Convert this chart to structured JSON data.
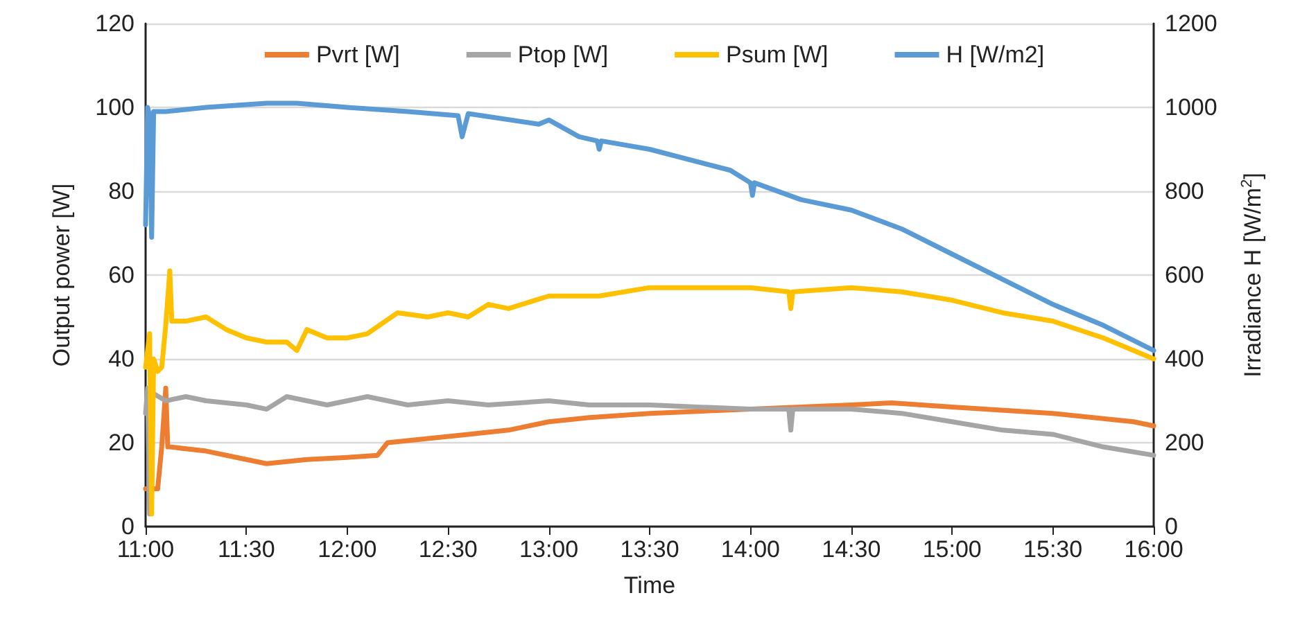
{
  "chart_data": {
    "type": "line",
    "xlabel": "Time",
    "ylabel": "Output power [W]",
    "y2label": "Irradiance H [W/m$^{2}$]",
    "xlim": [
      11,
      16
    ],
    "xticks": [
      {
        "value": 11,
        "label": "11:00"
      },
      {
        "value": 11.5,
        "label": "11:30"
      },
      {
        "value": 12,
        "label": "12:00"
      },
      {
        "value": 12.5,
        "label": "12:30"
      },
      {
        "value": 13,
        "label": "13:00"
      },
      {
        "value": 13.5,
        "label": "13:30"
      },
      {
        "value": 14,
        "label": "14:00"
      },
      {
        "value": 14.5,
        "label": "14:30"
      },
      {
        "value": 15,
        "label": "15:00"
      },
      {
        "value": 15.5,
        "label": "15:30"
      },
      {
        "value": 16,
        "label": "16:00"
      }
    ],
    "ylim": [
      0,
      120
    ],
    "yticks": [
      0,
      20,
      40,
      60,
      80,
      100,
      120
    ],
    "y2lim": [
      0,
      1200
    ],
    "y2ticks": [
      0,
      200,
      400,
      600,
      800,
      1000,
      1200
    ],
    "grid": "y",
    "legend": "top",
    "marker": "none",
    "line_style": "solid",
    "series": [
      {
        "name": "Pvrt [W]",
        "color": "#ed7d31",
        "x": [
          11,
          11.03,
          11.06,
          11.08,
          11.1,
          11.11,
          11.12,
          11.3,
          11.5,
          11.6,
          11.8,
          12,
          12.15,
          12.2,
          12.4,
          12.6,
          12.8,
          13,
          13.2,
          13.5,
          14,
          14.5,
          14.7,
          15,
          15.5,
          15.9,
          16
        ],
        "values": [
          9,
          9,
          9,
          19,
          33,
          19,
          19,
          18,
          16,
          15,
          16,
          16.5,
          17,
          20,
          21,
          22,
          23,
          25,
          26,
          27,
          28,
          29,
          29.5,
          28.5,
          27,
          25,
          24
        ]
      },
      {
        "name": "Ptop [W]",
        "color": "#a5a5a5",
        "x": [
          11,
          11.01,
          11.02,
          11.03,
          11.1,
          11.2,
          11.3,
          11.5,
          11.6,
          11.7,
          11.9,
          12,
          12.1,
          12.3,
          12.5,
          12.7,
          13,
          13.2,
          13.5,
          14,
          14.19,
          14.2,
          14.21,
          14.5,
          14.75,
          15,
          15.25,
          15.5,
          15.75,
          16
        ],
        "values": [
          27,
          33,
          3,
          32,
          30,
          31,
          30,
          29,
          28,
          31,
          29,
          30,
          31,
          29,
          30,
          29,
          30,
          29,
          29,
          28,
          28,
          23,
          28,
          28,
          27,
          25,
          23,
          22,
          19,
          17
        ]
      },
      {
        "name": "Psum [W]",
        "color": "#ffc000",
        "x": [
          11,
          11.01,
          11.02,
          11.03,
          11.04,
          11.06,
          11.08,
          11.1,
          11.12,
          11.13,
          11.2,
          11.3,
          11.4,
          11.5,
          11.6,
          11.7,
          11.75,
          11.8,
          11.9,
          12,
          12.1,
          12.25,
          12.4,
          12.5,
          12.6,
          12.7,
          12.8,
          13,
          13.1,
          13.25,
          13.5,
          13.6,
          14,
          14.19,
          14.2,
          14.21,
          14.5,
          14.75,
          15,
          15.25,
          15.5,
          15.75,
          16
        ],
        "values": [
          38,
          42,
          46,
          3,
          40,
          37,
          38,
          48,
          61,
          49,
          49,
          50,
          47,
          45,
          44,
          44,
          42,
          47,
          45,
          45,
          46,
          51,
          50,
          51,
          50,
          53,
          52,
          55,
          55,
          55,
          57,
          57,
          57,
          56,
          52,
          56,
          57,
          56,
          54,
          51,
          49,
          45,
          40
        ]
      },
      {
        "name": "H [W/m2]",
        "color": "#5b9bd5",
        "axis": "y2",
        "x": [
          11,
          11.01,
          11.02,
          11.03,
          11.04,
          11.1,
          11.3,
          11.6,
          11.75,
          12,
          12.3,
          12.55,
          12.57,
          12.6,
          12.95,
          13,
          13.15,
          13.24,
          13.25,
          13.26,
          13.5,
          13.9,
          14,
          14.01,
          14.02,
          14.25,
          14.5,
          14.75,
          15,
          15.25,
          15.5,
          15.75,
          16
        ],
        "values": [
          720,
          1000,
          980,
          690,
          990,
          990,
          1000,
          1010,
          1010,
          1000,
          990,
          980,
          930,
          985,
          960,
          970,
          930,
          920,
          900,
          920,
          900,
          850,
          820,
          790,
          820,
          780,
          755,
          710,
          650,
          590,
          530,
          480,
          420
        ]
      }
    ]
  }
}
